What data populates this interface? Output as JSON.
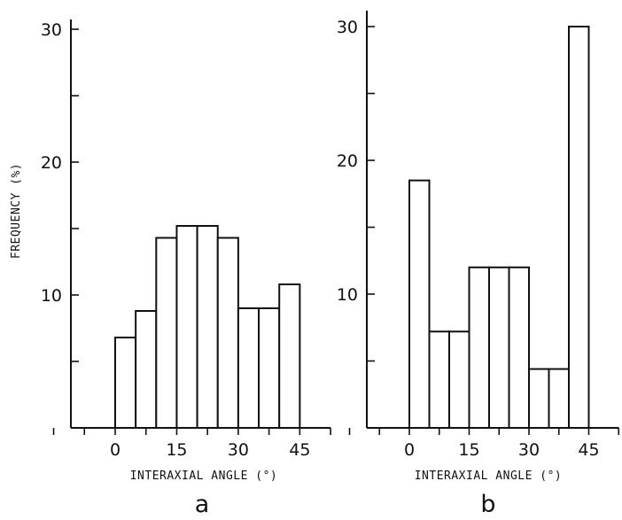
{
  "chart_data": [
    {
      "type": "bar",
      "panel_label": "a",
      "xlabel": "INTERAXIAL ANGLE (°)",
      "ylabel": "FREQUENCY (%)",
      "ylim": [
        0,
        30
      ],
      "xlim": [
        -15,
        52.5
      ],
      "yticks": [
        0,
        5,
        10,
        15,
        20,
        25,
        30
      ],
      "yticklabels": [
        "10",
        "20",
        "30"
      ],
      "xticks": [
        -15,
        -7.5,
        0,
        7.5,
        15,
        22.5,
        30,
        37.5,
        45,
        52.5
      ],
      "xticklabels": [
        "0",
        "15",
        "30",
        "45"
      ],
      "bin_width": 5,
      "bin_starts": [
        0,
        5,
        10,
        15,
        20,
        25,
        30,
        35,
        40
      ],
      "values": [
        6.8,
        8.8,
        14.3,
        15.2,
        15.2,
        14.3,
        9.0,
        9.0,
        10.8
      ]
    },
    {
      "type": "bar",
      "panel_label": "b",
      "xlabel": "INTERAXIAL ANGLE (°)",
      "ylabel": "",
      "ylim": [
        0,
        30
      ],
      "xlim": [
        -15,
        52.5
      ],
      "yticks": [
        0,
        5,
        10,
        15,
        20,
        25,
        30
      ],
      "yticklabels": [
        "10",
        "20",
        "30"
      ],
      "xticks": [
        -15,
        -7.5,
        0,
        7.5,
        15,
        22.5,
        30,
        37.5,
        45,
        52.5
      ],
      "xticklabels": [
        "0",
        "15",
        "30",
        "45"
      ],
      "bin_width": 5,
      "bin_starts": [
        0,
        5,
        10,
        15,
        20,
        25,
        30,
        35,
        40
      ],
      "values": [
        18.5,
        7.2,
        7.2,
        12.0,
        12.0,
        12.0,
        4.4,
        4.4,
        30.0
      ]
    }
  ]
}
